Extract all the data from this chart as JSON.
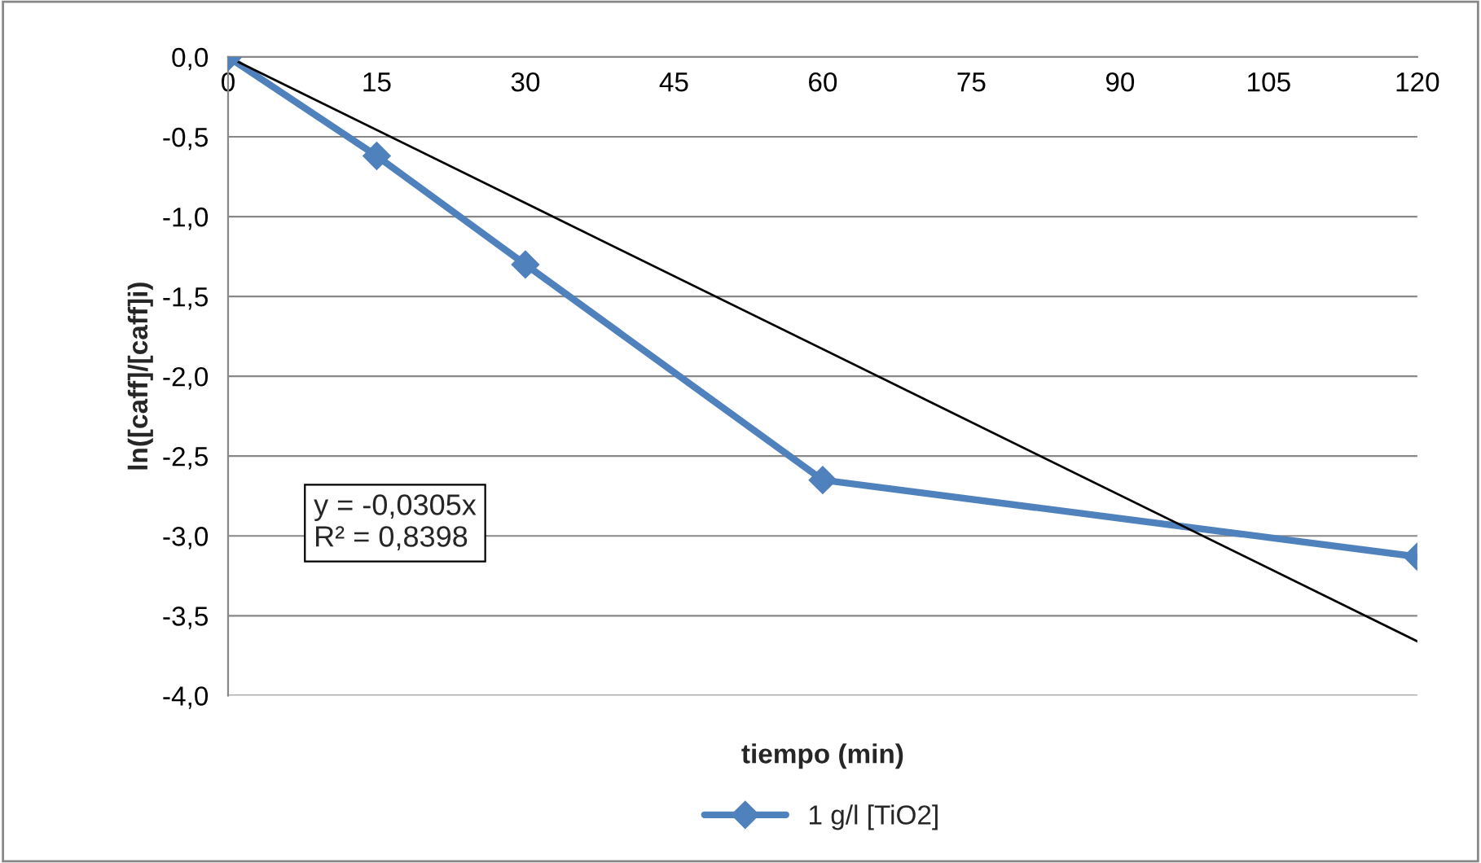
{
  "chart_data": {
    "type": "line",
    "xlabel": "tiempo (min)",
    "ylabel": "ln([caff]/[caff]i)",
    "x": [
      0,
      15,
      30,
      60,
      120
    ],
    "series": [
      {
        "name": "1 g/l [TiO2]",
        "color": "#4f81bd",
        "values": [
          0,
          -0.62,
          -1.3,
          -2.65,
          -3.13
        ],
        "marker": "diamond"
      },
      {
        "type": "line",
        "color": "#000000",
        "x": [
          0,
          120
        ],
        "values": [
          0,
          -3.66
        ],
        "marker": "none"
      }
    ],
    "xlim": [
      0,
      120
    ],
    "xticks": [
      0,
      15,
      30,
      45,
      60,
      75,
      90,
      105,
      120
    ],
    "ylim": [
      -4,
      0
    ],
    "yticks": [
      {
        "value": 0,
        "label": "0,0"
      },
      {
        "value": -0.5,
        "label": "-0,5"
      },
      {
        "value": -1,
        "label": "-1,0"
      },
      {
        "value": -1.5,
        "label": "-1,5"
      },
      {
        "value": -2,
        "label": "-2,0"
      },
      {
        "value": -2.5,
        "label": "-2,5"
      },
      {
        "value": -3,
        "label": "-3,0"
      },
      {
        "value": -3.5,
        "label": "-3,5"
      },
      {
        "value": -4,
        "label": "-4,0"
      }
    ],
    "grid": "y",
    "legend": "bottom",
    "annotations": [
      "y = -0,0305x\nR² = 0,8398"
    ]
  }
}
